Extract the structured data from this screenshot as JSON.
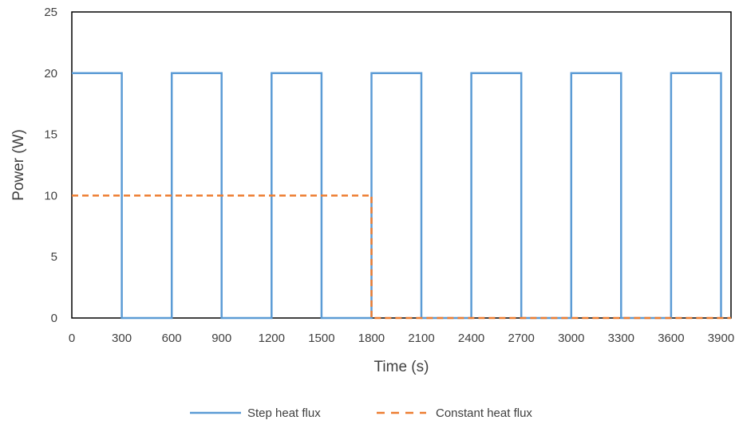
{
  "chart_data": {
    "type": "line",
    "xlabel": "Time (s)",
    "ylabel": "Power (W)",
    "xlim": [
      0,
      3960
    ],
    "ylim": [
      0,
      25
    ],
    "xticks": [
      0,
      300,
      600,
      900,
      1200,
      1500,
      1800,
      2100,
      2400,
      2700,
      3000,
      3300,
      3600,
      3900
    ],
    "yticks": [
      0,
      5,
      10,
      15,
      20,
      25
    ],
    "grid": false,
    "legend_position": "bottom",
    "series": [
      {
        "name": "Step heat flux",
        "style": "solid",
        "color": "#5B9BD5",
        "x": [
          0,
          300,
          300,
          600,
          600,
          900,
          900,
          1200,
          1200,
          1500,
          1500,
          1800,
          1800,
          2100,
          2100,
          2400,
          2400,
          2700,
          2700,
          3000,
          3000,
          3300,
          3300,
          3600,
          3600,
          3900,
          3900
        ],
        "y": [
          20,
          20,
          0,
          0,
          20,
          20,
          0,
          0,
          20,
          20,
          0,
          0,
          20,
          20,
          0,
          0,
          20,
          20,
          0,
          0,
          20,
          20,
          0,
          0,
          20,
          20,
          0
        ]
      },
      {
        "name": "Constant heat flux",
        "style": "dashed",
        "color": "#ED7D31",
        "x": [
          0,
          1800,
          1800,
          3960
        ],
        "y": [
          10,
          10,
          0,
          0
        ]
      }
    ]
  }
}
